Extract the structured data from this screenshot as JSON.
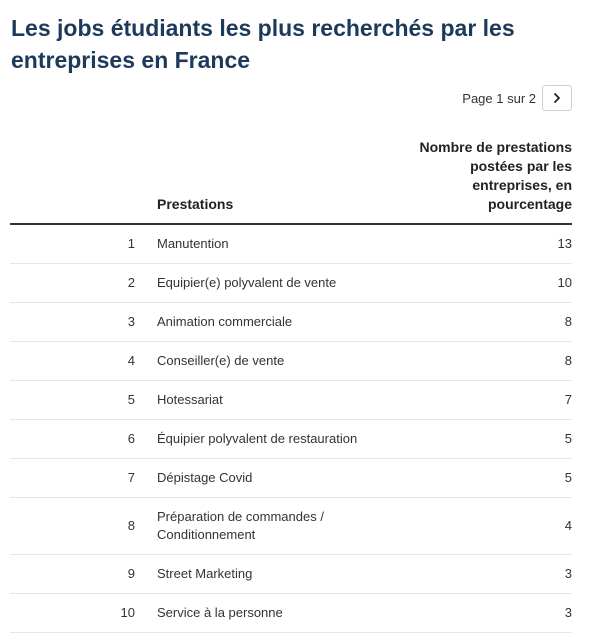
{
  "title": "Les jobs étudiants les plus recherchés par les entreprises en France",
  "pagination": {
    "text": "Page 1 sur 2",
    "next_icon": "chevron-right-icon"
  },
  "table": {
    "headers": {
      "rank": "",
      "name": "Prestations",
      "value": "Nombre de prestations postées par les entreprises, en pourcentage"
    }
  },
  "chart_data": {
    "type": "table",
    "title": "Les jobs étudiants les plus recherchés par les entreprises en France",
    "columns": [
      "",
      "Prestations",
      "Nombre de prestations postées par les entreprises, en pourcentage"
    ],
    "rows": [
      {
        "rank": "1",
        "name": "Manutention",
        "value": "13"
      },
      {
        "rank": "2",
        "name": "Equipier(e) polyvalent de vente",
        "value": "10"
      },
      {
        "rank": "3",
        "name": "Animation commerciale",
        "value": "8"
      },
      {
        "rank": "4",
        "name": "Conseiller(e) de vente",
        "value": "8"
      },
      {
        "rank": "5",
        "name": "Hotessariat",
        "value": "7"
      },
      {
        "rank": "6",
        "name": "Équipier polyvalent de restauration",
        "value": "5"
      },
      {
        "rank": "7",
        "name": "Dépistage Covid",
        "value": "5"
      },
      {
        "rank": "8",
        "name": "Préparation de commandes / Conditionnement",
        "value": "4"
      },
      {
        "rank": "9",
        "name": "Street Marketing",
        "value": "3"
      },
      {
        "rank": "10",
        "name": "Service à la personne",
        "value": "3"
      }
    ]
  }
}
